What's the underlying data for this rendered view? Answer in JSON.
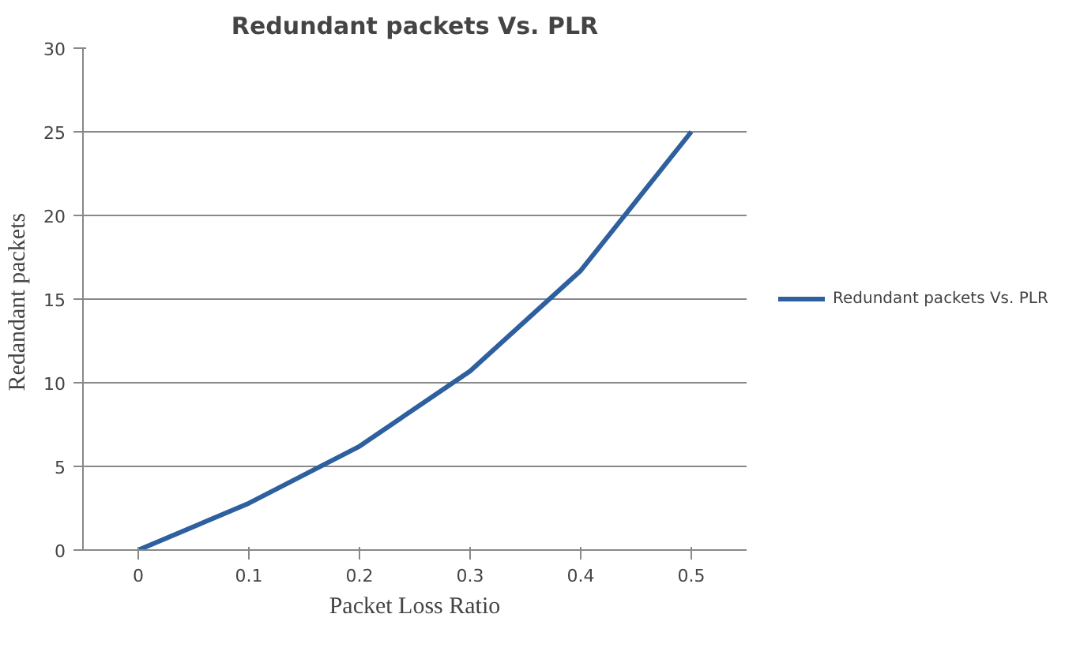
{
  "chart_data": {
    "type": "line",
    "title": "Redundant packets Vs. PLR",
    "xlabel": "Packet Loss Ratio",
    "ylabel": "Redandant  packets",
    "categories": [
      "0",
      "0.1",
      "0.2",
      "0.3",
      "0.4",
      "0.5"
    ],
    "series": [
      {
        "name": "Redundant packets Vs. PLR",
        "color": "#2e5f9e",
        "values": [
          0,
          2.8,
          6.2,
          10.7,
          16.7,
          25
        ]
      }
    ],
    "ylim": [
      0,
      30
    ],
    "yticks": [
      0,
      5,
      10,
      15,
      20,
      25,
      30
    ],
    "grid": "y",
    "legend": "right",
    "marker": "none",
    "line_style": "solid"
  }
}
